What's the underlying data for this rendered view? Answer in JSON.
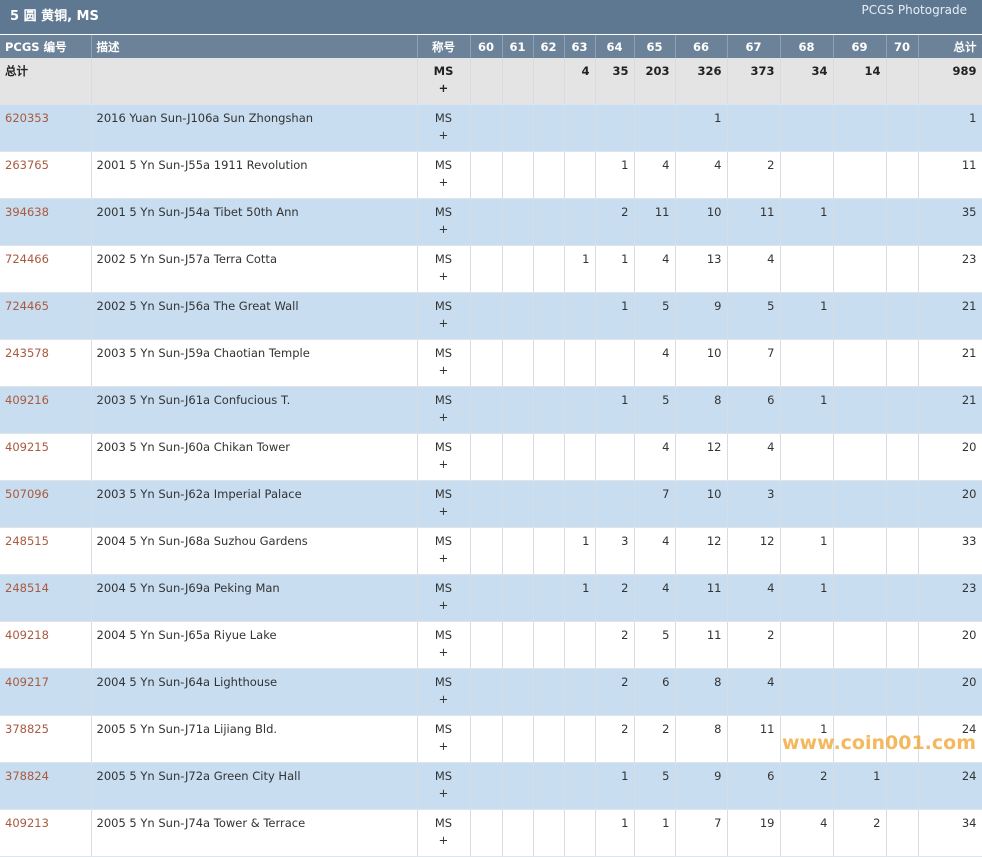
{
  "header": {
    "title": "5 圆 黄铜, MS",
    "link": "PCGS Photograde"
  },
  "table": {
    "columns": [
      "PCGS 编号",
      "描述",
      "称号",
      "60",
      "61",
      "62",
      "63",
      "64",
      "65",
      "66",
      "67",
      "68",
      "69",
      "70",
      "总计"
    ],
    "total_row": {
      "label": "总计",
      "grade": "MS",
      "grade_plus": "+",
      "counts": [
        null,
        null,
        null,
        4,
        35,
        203,
        326,
        373,
        34,
        14,
        null
      ],
      "total": 989
    },
    "rows": [
      {
        "code": "620353",
        "description": "2016 Yuan Sun-J106a Sun Zhongshan",
        "grade": "MS",
        "grade_plus": "+",
        "counts": [
          null,
          null,
          null,
          null,
          null,
          null,
          1,
          null,
          null,
          null,
          null
        ],
        "total": 1
      },
      {
        "code": "263765",
        "description": "2001 5 Yn Sun-J55a 1911 Revolution",
        "grade": "MS",
        "grade_plus": "+",
        "counts": [
          null,
          null,
          null,
          null,
          1,
          4,
          4,
          2,
          null,
          null,
          null
        ],
        "total": 11
      },
      {
        "code": "394638",
        "description": "2001 5 Yn Sun-J54a Tibet 50th Ann",
        "grade": "MS",
        "grade_plus": "+",
        "counts": [
          null,
          null,
          null,
          null,
          2,
          11,
          10,
          11,
          1,
          null,
          null
        ],
        "total": 35
      },
      {
        "code": "724466",
        "description": "2002 5 Yn Sun-J57a Terra Cotta",
        "grade": "MS",
        "grade_plus": "+",
        "counts": [
          null,
          null,
          null,
          1,
          1,
          4,
          13,
          4,
          null,
          null,
          null
        ],
        "total": 23
      },
      {
        "code": "724465",
        "description": "2002 5 Yn Sun-J56a The Great Wall",
        "grade": "MS",
        "grade_plus": "+",
        "counts": [
          null,
          null,
          null,
          null,
          1,
          5,
          9,
          5,
          1,
          null,
          null
        ],
        "total": 21
      },
      {
        "code": "243578",
        "description": "2003 5 Yn Sun-J59a Chaotian Temple",
        "grade": "MS",
        "grade_plus": "+",
        "counts": [
          null,
          null,
          null,
          null,
          null,
          4,
          10,
          7,
          null,
          null,
          null
        ],
        "total": 21
      },
      {
        "code": "409216",
        "description": "2003 5 Yn Sun-J61a Confucious T.",
        "grade": "MS",
        "grade_plus": "+",
        "counts": [
          null,
          null,
          null,
          null,
          1,
          5,
          8,
          6,
          1,
          null,
          null
        ],
        "total": 21
      },
      {
        "code": "409215",
        "description": "2003 5 Yn Sun-J60a Chikan Tower",
        "grade": "MS",
        "grade_plus": "+",
        "counts": [
          null,
          null,
          null,
          null,
          null,
          4,
          12,
          4,
          null,
          null,
          null
        ],
        "total": 20
      },
      {
        "code": "507096",
        "description": "2003 5 Yn Sun-J62a Imperial Palace",
        "grade": "MS",
        "grade_plus": "+",
        "counts": [
          null,
          null,
          null,
          null,
          null,
          7,
          10,
          3,
          null,
          null,
          null
        ],
        "total": 20
      },
      {
        "code": "248515",
        "description": "2004 5 Yn Sun-J68a Suzhou Gardens",
        "grade": "MS",
        "grade_plus": "+",
        "counts": [
          null,
          null,
          null,
          1,
          3,
          4,
          12,
          12,
          1,
          null,
          null
        ],
        "total": 33
      },
      {
        "code": "248514",
        "description": "2004 5 Yn Sun-J69a Peking Man",
        "grade": "MS",
        "grade_plus": "+",
        "counts": [
          null,
          null,
          null,
          1,
          2,
          4,
          11,
          4,
          1,
          null,
          null
        ],
        "total": 23
      },
      {
        "code": "409218",
        "description": "2004 5 Yn Sun-J65a Riyue Lake",
        "grade": "MS",
        "grade_plus": "+",
        "counts": [
          null,
          null,
          null,
          null,
          2,
          5,
          11,
          2,
          null,
          null,
          null
        ],
        "total": 20
      },
      {
        "code": "409217",
        "description": "2004 5 Yn Sun-J64a Lighthouse",
        "grade": "MS",
        "grade_plus": "+",
        "counts": [
          null,
          null,
          null,
          null,
          2,
          6,
          8,
          4,
          null,
          null,
          null
        ],
        "total": 20
      },
      {
        "code": "378825",
        "description": "2005 5 Yn Sun-J71a Lijiang Bld.",
        "grade": "MS",
        "grade_plus": "+",
        "counts": [
          null,
          null,
          null,
          null,
          2,
          2,
          8,
          11,
          1,
          null,
          null
        ],
        "total": 24
      },
      {
        "code": "378824",
        "description": "2005 5 Yn Sun-J72a Green City Hall",
        "grade": "MS",
        "grade_plus": "+",
        "counts": [
          null,
          null,
          null,
          null,
          1,
          5,
          9,
          6,
          2,
          1,
          null
        ],
        "total": 24
      },
      {
        "code": "409213",
        "description": "2005 5 Yn Sun-J74a Tower & Terrace",
        "grade": "MS",
        "grade_plus": "+",
        "counts": [
          null,
          null,
          null,
          null,
          1,
          1,
          7,
          19,
          4,
          2,
          null
        ],
        "total": 34
      }
    ]
  },
  "watermark": "www.coin001.com"
}
